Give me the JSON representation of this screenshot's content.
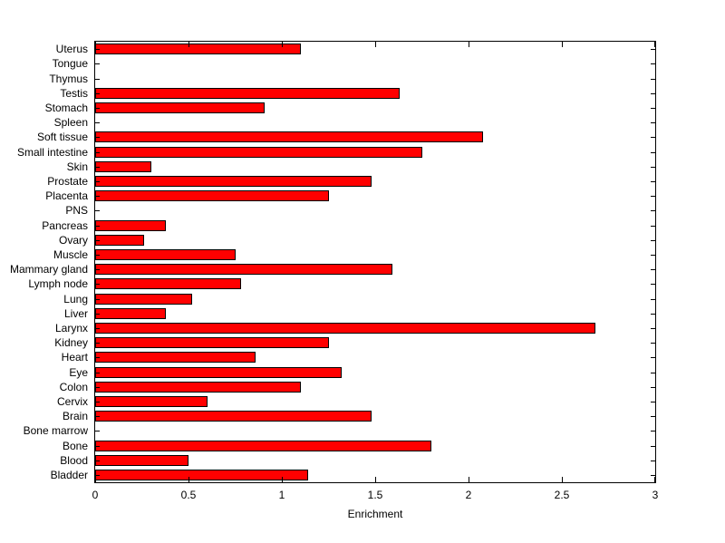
{
  "chart_data": {
    "type": "bar",
    "orientation": "horizontal",
    "title": "",
    "xlabel": "Enrichment",
    "ylabel": "",
    "xlim": [
      0,
      3
    ],
    "xticks": [
      0,
      0.5,
      1,
      1.5,
      2,
      2.5,
      3
    ],
    "xtick_labels": [
      "0",
      "0.5",
      "1",
      "1.5",
      "2",
      "2.5",
      "3"
    ],
    "grid": false,
    "legend": null,
    "bar_color": "#ff0000",
    "bar_edge_color": "#000000",
    "categories": [
      "Uterus",
      "Tongue",
      "Thymus",
      "Testis",
      "Stomach",
      "Spleen",
      "Soft tissue",
      "Small intestine",
      "Skin",
      "Prostate",
      "Placenta",
      "PNS",
      "Pancreas",
      "Ovary",
      "Muscle",
      "Mammary gland",
      "Lymph node",
      "Lung",
      "Liver",
      "Larynx",
      "Kidney",
      "Heart",
      "Eye",
      "Colon",
      "Cervix",
      "Brain",
      "Bone marrow",
      "Bone",
      "Blood",
      "Bladder"
    ],
    "values": [
      1.1,
      0,
      0,
      1.63,
      0.91,
      0,
      2.08,
      1.75,
      0.3,
      1.48,
      1.25,
      0,
      0.38,
      0.26,
      0.75,
      1.59,
      0.78,
      0.52,
      0.38,
      2.68,
      1.25,
      0.86,
      1.32,
      1.1,
      0.6,
      1.48,
      0,
      1.8,
      0.5,
      1.14
    ]
  }
}
